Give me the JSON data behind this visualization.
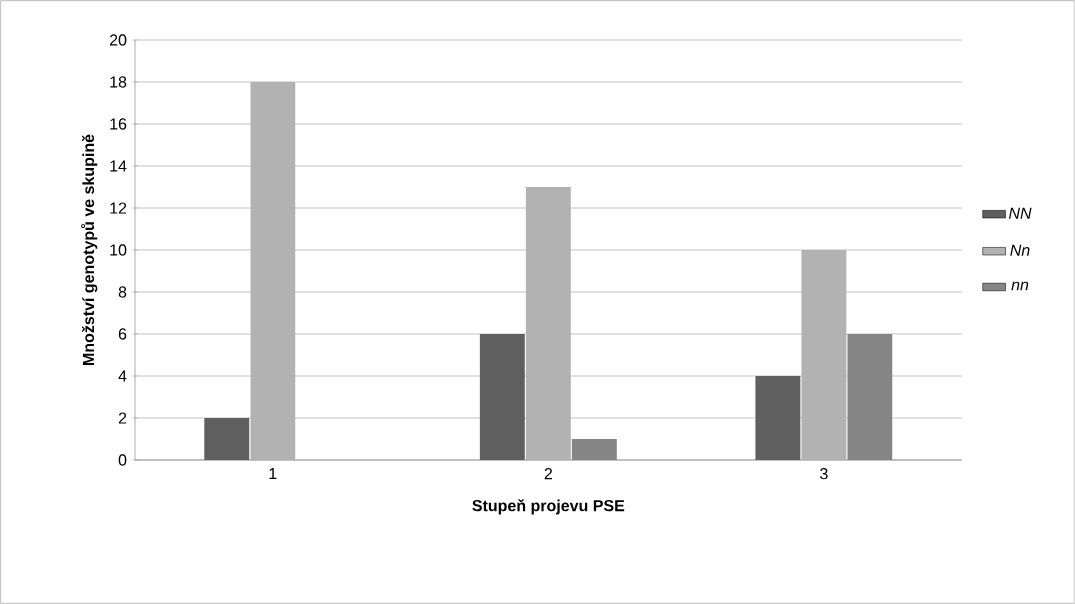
{
  "chart_data": {
    "type": "bar",
    "xlabel": "Stupeň projevu PSE",
    "ylabel": "Množství genotypů ve skupině",
    "categories": [
      "1",
      "2",
      "3"
    ],
    "series": [
      {
        "name": "NN",
        "color": "#5f5f5f",
        "values": [
          2,
          6,
          4
        ]
      },
      {
        "name": "Nn",
        "color": "#b2b2b2",
        "values": [
          18,
          13,
          10
        ]
      },
      {
        "name": "nn",
        "color": "#858585",
        "values": [
          0,
          1,
          6
        ]
      }
    ],
    "ylim": [
      0,
      20
    ],
    "yticks": [
      0,
      2,
      4,
      6,
      8,
      10,
      12,
      14,
      16,
      18,
      20
    ],
    "grid": "y",
    "legend": "right"
  }
}
